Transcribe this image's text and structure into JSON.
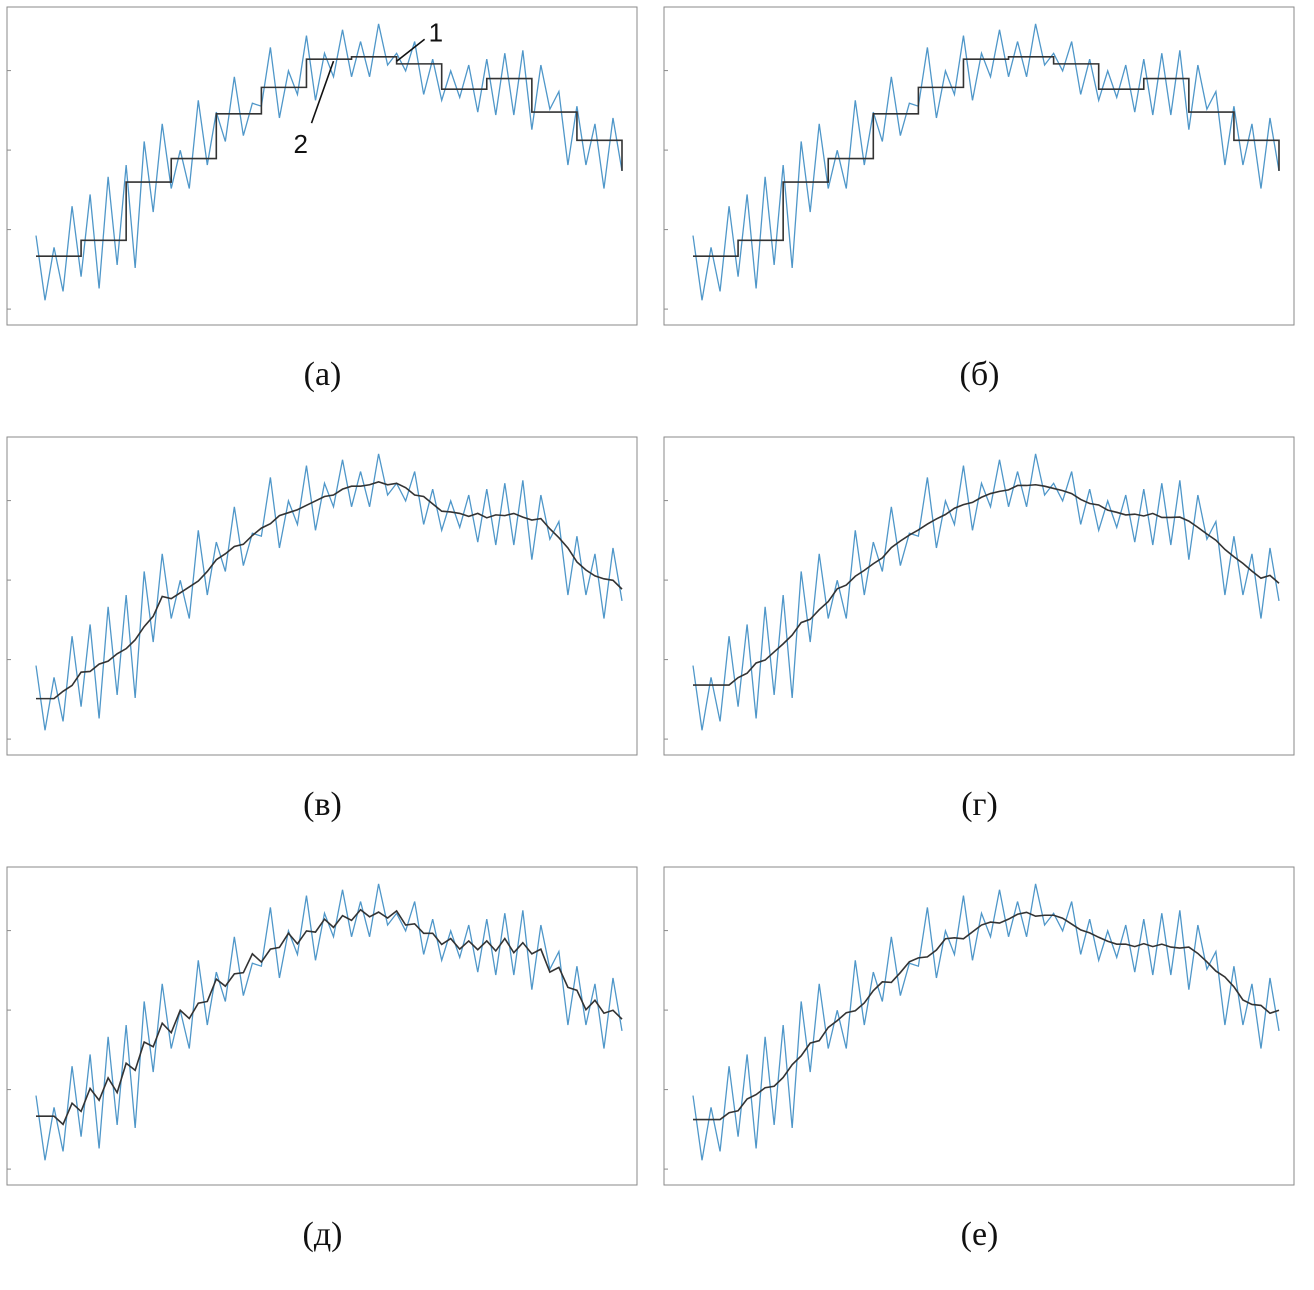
{
  "chart_data": [
    {
      "type": "line",
      "caption": "(а)",
      "smoothing": "step",
      "window": 5,
      "annotations": [
        {
          "label": "1",
          "series": "noisy"
        },
        {
          "label": "2",
          "series": "smooth"
        }
      ]
    },
    {
      "type": "line",
      "caption": "(б)",
      "smoothing": "step",
      "window": 5,
      "annotations": []
    },
    {
      "type": "line",
      "caption": "(в)",
      "smoothing": "moving-average",
      "window": 4,
      "annotations": []
    },
    {
      "type": "line",
      "caption": "(г)",
      "smoothing": "moving-average",
      "window": 8,
      "annotations": []
    },
    {
      "type": "line",
      "caption": "(д)",
      "smoothing": "moving-average",
      "window": 5,
      "annotations": []
    },
    {
      "type": "line",
      "caption": "(е)",
      "smoothing": "moving-average",
      "window": 6,
      "annotations": []
    }
  ],
  "series_data": {
    "ylim": [
      0,
      100
    ],
    "noisy": [
      26,
      4,
      22,
      7,
      36,
      12,
      40,
      8,
      46,
      16,
      50,
      15,
      58,
      34,
      64,
      42,
      55,
      42,
      72,
      50,
      68,
      58,
      80,
      60,
      71,
      70,
      90,
      66,
      82,
      74,
      94,
      72,
      88,
      80,
      96,
      80,
      92,
      80,
      98,
      84,
      88,
      82,
      92,
      74,
      86,
      72,
      82,
      73,
      84,
      68,
      86,
      67,
      88,
      67,
      89,
      62,
      84,
      69,
      75,
      50,
      70,
      50,
      64,
      42,
      66,
      48
    ]
  },
  "colors": {
    "noisy": "#4f97c9",
    "smooth": "#333333",
    "frame": "#8a8a8a"
  }
}
